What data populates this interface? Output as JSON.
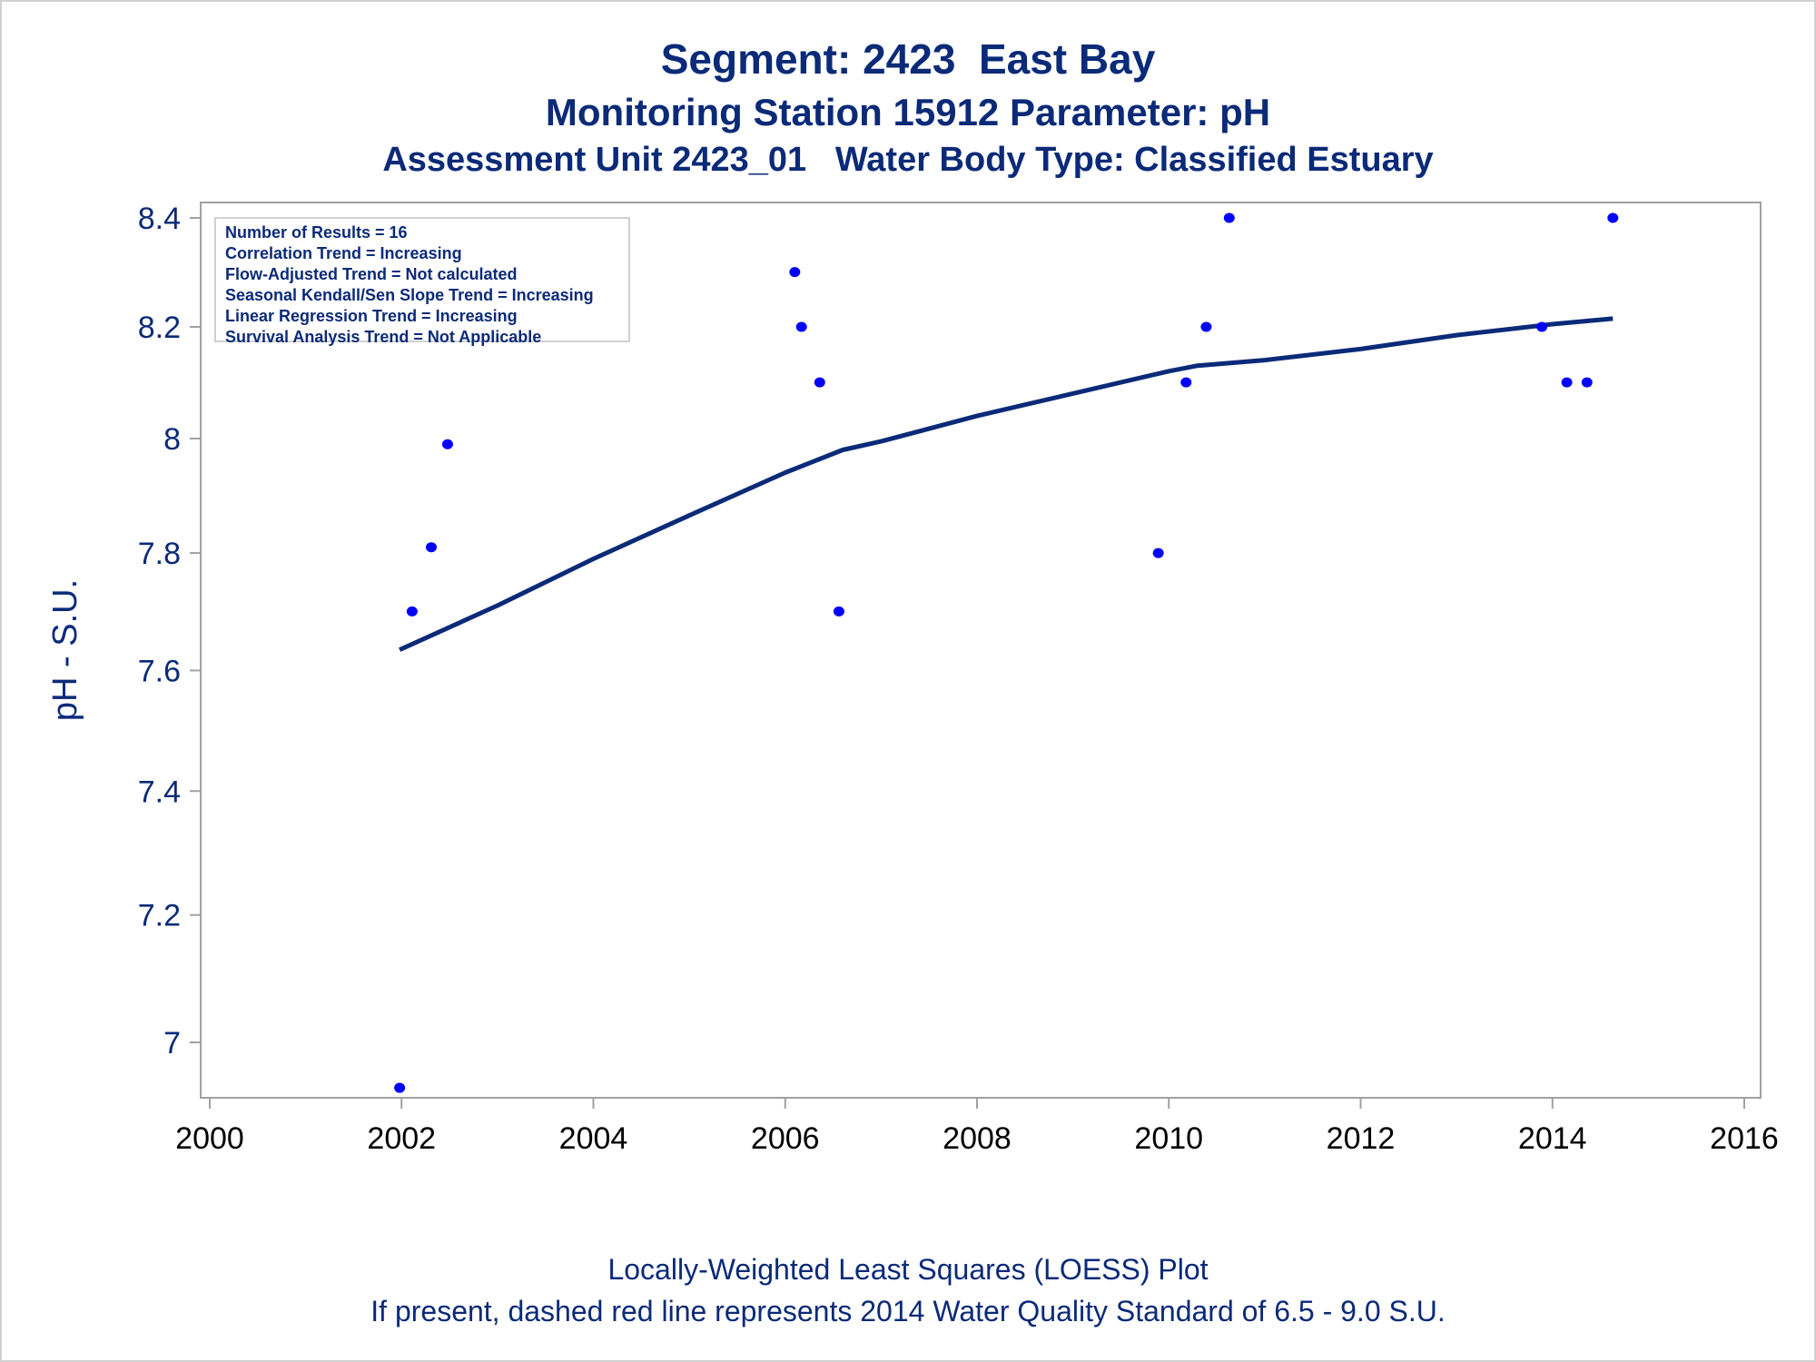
{
  "titles": {
    "line1": "Segment: 2423  East Bay",
    "line2": "Monitoring Station 15912 Parameter: pH",
    "line3": "Assessment Unit 2423_01   Water Body Type: Classified Estuary"
  },
  "footnotes": {
    "line1": "Locally-Weighted Least Squares (LOESS) Plot",
    "line2": "If present, dashed red line represents 2014 Water Quality Standard of 6.5 - 9.0 S.U."
  },
  "legend": {
    "items": [
      "Number of Results = 16",
      "Correlation Trend = Increasing",
      "Flow-Adjusted Trend = Not calculated",
      "Seasonal Kendall/Sen Slope Trend = Increasing",
      "Linear Regression Trend = Increasing",
      "Survival Analysis Trend = Not Applicable"
    ]
  },
  "colors": {
    "text": "#0b2a78",
    "points": "#0000ff",
    "loess": "#0b2a78",
    "axis": "#a0a0a0"
  },
  "chart_data": {
    "type": "scatter",
    "title": "Segment: 2423  East Bay",
    "xlabel": "",
    "ylabel": "pH - S.U.",
    "xlim": [
      2000,
      2016
    ],
    "ylim": [
      6.93,
      8.4
    ],
    "yscale": "log",
    "xticks": [
      "2000",
      "2002",
      "2004",
      "2006",
      "2008",
      "2010",
      "2012",
      "2014",
      "2016"
    ],
    "yticks": [
      "7",
      "7.2",
      "7.4",
      "7.6",
      "7.8",
      "8",
      "8.2",
      "8.4"
    ],
    "grid": false,
    "legend_position": "top-left",
    "points": [
      {
        "x": 2001.98,
        "y": 6.93
      },
      {
        "x": 2002.11,
        "y": 7.7
      },
      {
        "x": 2002.31,
        "y": 7.81
      },
      {
        "x": 2002.48,
        "y": 7.99
      },
      {
        "x": 2006.1,
        "y": 8.3
      },
      {
        "x": 2006.17,
        "y": 8.2
      },
      {
        "x": 2006.36,
        "y": 8.1
      },
      {
        "x": 2006.56,
        "y": 7.7
      },
      {
        "x": 2009.89,
        "y": 7.8
      },
      {
        "x": 2010.18,
        "y": 8.1
      },
      {
        "x": 2010.39,
        "y": 8.2
      },
      {
        "x": 2010.63,
        "y": 8.4
      },
      {
        "x": 2013.89,
        "y": 8.2
      },
      {
        "x": 2014.15,
        "y": 8.1
      },
      {
        "x": 2014.36,
        "y": 8.1
      },
      {
        "x": 2014.63,
        "y": 8.4
      }
    ],
    "loess": {
      "name": "LOESS",
      "x": [
        2001.98,
        2003,
        2004,
        2005,
        2006,
        2006.6,
        2007,
        2008,
        2009,
        2010,
        2010.3,
        2011,
        2012,
        2013,
        2014,
        2014.63
      ],
      "y": [
        7.635,
        7.71,
        7.79,
        7.865,
        7.94,
        7.98,
        7.995,
        8.04,
        8.08,
        8.12,
        8.13,
        8.14,
        8.16,
        8.185,
        8.205,
        8.215
      ]
    }
  }
}
